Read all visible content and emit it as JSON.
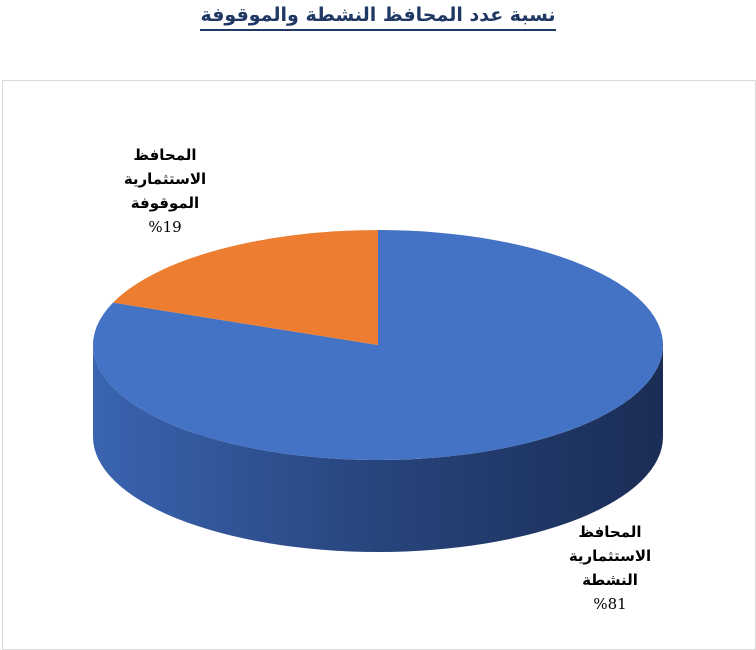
{
  "title": "نسبة عدد المحافظ النشطة والموقوفة",
  "chart_data": {
    "type": "pie",
    "style": "3d",
    "title": "نسبة عدد المحافظ النشطة والموقوفة",
    "categories": [
      "المحافظ الاستثمارية النشطة",
      "المحافظ الاستثمارية الموقوفة"
    ],
    "values": [
      81,
      19
    ],
    "colors": [
      "#4472c4",
      "#ed7d31"
    ],
    "labels": [
      {
        "lines": [
          "المحافظ",
          "الاستثمارية",
          "النشطة"
        ],
        "pct": "%81"
      },
      {
        "lines": [
          "المحافظ",
          "الاستثمارية",
          "الموقوفة"
        ],
        "pct": "%19"
      }
    ],
    "legend": "none"
  }
}
